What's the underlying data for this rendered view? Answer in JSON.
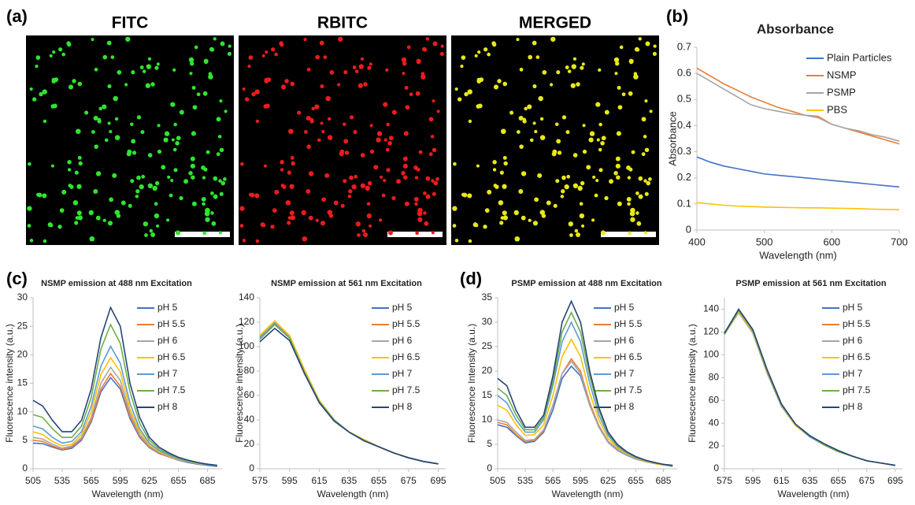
{
  "figure": {
    "panel_labels": [
      "(a)",
      "(b)",
      "(c)",
      "(d)"
    ],
    "image_titles": [
      "FITC",
      "RBITC",
      "MERGED"
    ]
  },
  "chart_data": [
    {
      "type": "line",
      "title": "Absorbance",
      "x_label": "Wavelength (nm)",
      "y_label": "Absorbance",
      "x": [
        400,
        420,
        440,
        460,
        480,
        500,
        520,
        540,
        560,
        580,
        600,
        620,
        640,
        660,
        680,
        700
      ],
      "xlim": [
        400,
        700
      ],
      "ylim": [
        0,
        0.7
      ],
      "xticks": [
        400,
        500,
        600,
        700
      ],
      "yticks": [
        0,
        0.1,
        0.2,
        0.3,
        0.4,
        0.5,
        0.6,
        0.7
      ],
      "series": [
        {
          "name": "Plain Particles",
          "color": "#4472c4",
          "values": [
            0.28,
            0.26,
            0.245,
            0.235,
            0.225,
            0.215,
            0.21,
            0.205,
            0.2,
            0.195,
            0.19,
            0.185,
            0.18,
            0.175,
            0.17,
            0.165
          ]
        },
        {
          "name": "NSMP",
          "color": "#ed7d31",
          "values": [
            0.62,
            0.59,
            0.56,
            0.535,
            0.51,
            0.49,
            0.47,
            0.455,
            0.44,
            0.435,
            0.405,
            0.39,
            0.375,
            0.36,
            0.345,
            0.33
          ]
        },
        {
          "name": "PSMP",
          "color": "#a5a5a5",
          "values": [
            0.6,
            0.57,
            0.54,
            0.51,
            0.48,
            0.465,
            0.455,
            0.445,
            0.44,
            0.43,
            0.405,
            0.39,
            0.38,
            0.365,
            0.355,
            0.34
          ]
        },
        {
          "name": "PBS",
          "color": "#ffc000",
          "values": [
            0.105,
            0.1,
            0.095,
            0.092,
            0.09,
            0.088,
            0.087,
            0.086,
            0.085,
            0.085,
            0.084,
            0.083,
            0.082,
            0.08,
            0.079,
            0.078
          ]
        }
      ]
    },
    {
      "type": "line",
      "title": "NSMP emission at 488 nm Excitation",
      "x_label": "Wavelength (nm)",
      "y_label": "Fluorescence intensity (a.u.)",
      "x": [
        505,
        515,
        525,
        535,
        545,
        555,
        565,
        575,
        585,
        595,
        605,
        615,
        625,
        635,
        645,
        655,
        665,
        675,
        685,
        695
      ],
      "xlim": [
        505,
        700
      ],
      "ylim": [
        0,
        30
      ],
      "xticks": [
        505,
        535,
        565,
        595,
        625,
        655,
        685
      ],
      "yticks": [
        0,
        5,
        10,
        15,
        20,
        25,
        30
      ],
      "series": [
        {
          "name": "pH 5",
          "color": "#4472c4",
          "values": [
            4.5,
            4.4,
            3.8,
            3.3,
            3.6,
            5,
            8.2,
            13.5,
            16,
            14,
            8.8,
            5.5,
            3.7,
            2.7,
            2.1,
            1.5,
            1.1,
            0.8,
            0.6,
            0.4
          ]
        },
        {
          "name": "pH 5.5",
          "color": "#ed7d31",
          "values": [
            5,
            4.8,
            4,
            3.4,
            3.8,
            5.2,
            8.5,
            14,
            16.7,
            14.5,
            9.2,
            5.7,
            3.8,
            2.8,
            2.1,
            1.6,
            1.2,
            0.9,
            0.7,
            0.5
          ]
        },
        {
          "name": "pH 6",
          "color": "#a5a5a5",
          "values": [
            5.5,
            5.2,
            4.3,
            3.6,
            4,
            5.5,
            9,
            15,
            17.8,
            15.5,
            9.8,
            6,
            4,
            2.9,
            2.2,
            1.6,
            1.2,
            0.9,
            0.7,
            0.5
          ]
        },
        {
          "name": "pH 6.5",
          "color": "#ffc000",
          "values": [
            6.5,
            6,
            4.8,
            4,
            4.3,
            6,
            10,
            16.5,
            19.5,
            17,
            10.5,
            6.5,
            4.2,
            3,
            2.3,
            1.7,
            1.3,
            0.9,
            0.7,
            0.5
          ]
        },
        {
          "name": "pH 7",
          "color": "#5b9bd5",
          "values": [
            7.5,
            7,
            5.5,
            4.5,
            4.8,
            6.5,
            11,
            18,
            21.5,
            18.5,
            11.5,
            7,
            4.5,
            3.2,
            2.4,
            1.8,
            1.3,
            1,
            0.7,
            0.5
          ]
        },
        {
          "name": "pH 7.5",
          "color": "#70ad47",
          "values": [
            9.5,
            9,
            7,
            5.5,
            5.5,
            7.5,
            12.5,
            21,
            25.3,
            22,
            13.5,
            8,
            5,
            3.5,
            2.6,
            1.9,
            1.4,
            1,
            0.8,
            0.6
          ]
        },
        {
          "name": "pH 8",
          "color": "#264478",
          "values": [
            12,
            11,
            8.5,
            6.5,
            6.5,
            8.5,
            14,
            23,
            28.3,
            25,
            15,
            9,
            5.5,
            3.8,
            2.8,
            2,
            1.5,
            1.1,
            0.8,
            0.6
          ]
        }
      ]
    },
    {
      "type": "line",
      "title": "NSMP emission at 561 nm Excitation",
      "x_label": "Wavelength (nm)",
      "y_label": "Fluorescence intensity (a.u.)",
      "x": [
        575,
        585,
        595,
        605,
        615,
        625,
        635,
        645,
        655,
        665,
        675,
        685,
        695
      ],
      "xlim": [
        575,
        700
      ],
      "ylim": [
        0,
        140
      ],
      "xticks": [
        575,
        595,
        615,
        635,
        655,
        675,
        695
      ],
      "yticks": [
        0,
        20,
        40,
        60,
        80,
        100,
        120,
        140
      ],
      "series": [
        {
          "name": "pH 5",
          "color": "#4472c4",
          "values": [
            109,
            121,
            109,
            81,
            55,
            40,
            30,
            24,
            18,
            13,
            9,
            6,
            4
          ]
        },
        {
          "name": "pH 5.5",
          "color": "#ed7d31",
          "values": [
            108,
            120,
            108,
            80,
            55,
            40,
            30,
            24,
            18,
            13,
            9,
            6,
            4
          ]
        },
        {
          "name": "pH 6",
          "color": "#a5a5a5",
          "values": [
            108,
            120,
            109,
            80,
            55,
            40,
            30,
            24,
            18,
            13,
            9,
            6,
            4
          ]
        },
        {
          "name": "pH 6.5",
          "color": "#ffc000",
          "values": [
            109,
            121,
            109,
            81,
            56,
            40,
            30,
            24,
            18,
            13,
            9,
            6,
            4
          ]
        },
        {
          "name": "pH 7",
          "color": "#5b9bd5",
          "values": [
            107,
            119,
            107,
            79,
            55,
            40,
            30,
            23,
            18,
            13,
            9,
            6,
            4
          ]
        },
        {
          "name": "pH 7.5",
          "color": "#70ad47",
          "values": [
            106,
            118,
            107,
            79,
            55,
            40,
            30,
            23,
            18,
            13,
            9,
            6,
            4
          ]
        },
        {
          "name": "pH 8",
          "color": "#264478",
          "values": [
            104,
            115,
            105,
            78,
            54,
            39,
            30,
            23,
            18,
            13,
            9,
            6,
            4
          ]
        }
      ]
    },
    {
      "type": "line",
      "title": "PSMP emission at 488 nm Excitation",
      "x_label": "Wavelength (nm)",
      "y_label": "Fluorescence Intensity (a.u.)",
      "x": [
        505,
        515,
        525,
        535,
        545,
        555,
        565,
        575,
        585,
        595,
        605,
        615,
        625,
        635,
        645,
        655,
        665,
        675,
        685,
        695
      ],
      "xlim": [
        505,
        700
      ],
      "ylim": [
        0,
        35
      ],
      "xticks": [
        505,
        535,
        565,
        595,
        625,
        655,
        685
      ],
      "yticks": [
        0,
        5,
        10,
        15,
        20,
        25,
        30,
        35
      ],
      "series": [
        {
          "name": "pH 5",
          "color": "#4472c4",
          "values": [
            9,
            8.5,
            6.8,
            5.3,
            5.6,
            7.5,
            12,
            18.5,
            21,
            19,
            13,
            8.5,
            5.4,
            3.8,
            2.8,
            2,
            1.5,
            1.1,
            0.8,
            0.5
          ]
        },
        {
          "name": "pH 5.5",
          "color": "#ed7d31",
          "values": [
            9.5,
            9,
            7,
            5.5,
            5.8,
            7.8,
            13,
            19.5,
            22.5,
            20,
            13.5,
            8.8,
            5.6,
            4,
            2.9,
            2.1,
            1.5,
            1.1,
            0.8,
            0.6
          ]
        },
        {
          "name": "pH 6",
          "color": "#a5a5a5",
          "values": [
            10,
            9.5,
            7.5,
            5.8,
            6,
            8,
            13,
            19.5,
            22,
            19.5,
            13,
            8.5,
            5.5,
            3.9,
            2.9,
            2.1,
            1.5,
            1.1,
            0.8,
            0.6
          ]
        },
        {
          "name": "pH 6.5",
          "color": "#ffc000",
          "values": [
            13,
            12,
            9,
            6.8,
            7,
            9,
            15,
            23,
            26.5,
            23,
            15.5,
            10,
            6.2,
            4.3,
            3.1,
            2.2,
            1.6,
            1.1,
            0.8,
            0.6
          ]
        },
        {
          "name": "pH 7",
          "color": "#5b9bd5",
          "values": [
            15,
            13.5,
            10,
            7.5,
            7.5,
            10,
            17,
            26,
            30,
            26,
            17.5,
            11,
            6.8,
            4.6,
            3.3,
            2.3,
            1.7,
            1.2,
            0.9,
            0.6
          ]
        },
        {
          "name": "pH 7.5",
          "color": "#70ad47",
          "values": [
            16.5,
            15,
            11,
            8,
            8,
            10.5,
            18,
            28,
            32,
            28,
            19,
            12,
            7.2,
            4.8,
            3.4,
            2.4,
            1.7,
            1.2,
            0.9,
            0.7
          ]
        },
        {
          "name": "pH 8",
          "color": "#264478",
          "values": [
            18.5,
            17,
            12,
            8.5,
            8.5,
            11,
            19,
            30,
            34.3,
            30,
            20,
            12.5,
            7.5,
            5,
            3.5,
            2.5,
            1.8,
            1.3,
            0.9,
            0.7
          ]
        }
      ]
    },
    {
      "type": "line",
      "title": "PSMP emission at 561 nm Excitation",
      "x_label": "Wavelength (nm)",
      "y_label": "Fluorescence intensity (a.u.)",
      "x": [
        575,
        585,
        595,
        605,
        615,
        625,
        635,
        645,
        655,
        665,
        675,
        685,
        695
      ],
      "xlim": [
        575,
        700
      ],
      "ylim": [
        0,
        150
      ],
      "xticks": [
        575,
        595,
        615,
        635,
        655,
        675,
        695
      ],
      "yticks": [
        0,
        20,
        40,
        60,
        80,
        100,
        120,
        140
      ],
      "series": [
        {
          "name": "pH 5",
          "color": "#4472c4",
          "values": [
            119,
            137,
            119,
            84,
            55,
            38,
            28,
            21,
            15,
            11,
            7,
            5,
            3
          ]
        },
        {
          "name": "pH 5.5",
          "color": "#ed7d31",
          "values": [
            119,
            138,
            120,
            85,
            55,
            38,
            28,
            21,
            15,
            11,
            7,
            5,
            3
          ]
        },
        {
          "name": "pH 6",
          "color": "#a5a5a5",
          "values": [
            118,
            137,
            119,
            85,
            55,
            38,
            28,
            21,
            15,
            11,
            7,
            5,
            3
          ]
        },
        {
          "name": "pH 6.5",
          "color": "#ffc000",
          "values": [
            118,
            138,
            120,
            85,
            56,
            38,
            28,
            21,
            15,
            11,
            7,
            5,
            3
          ]
        },
        {
          "name": "pH 7",
          "color": "#5b9bd5",
          "values": [
            118,
            139,
            121,
            86,
            56,
            39,
            28,
            21,
            15,
            11,
            7,
            5,
            3
          ]
        },
        {
          "name": "pH 7.5",
          "color": "#70ad47",
          "values": [
            118,
            139,
            121,
            86,
            56,
            39,
            29,
            21,
            15,
            11,
            7,
            5,
            3
          ]
        },
        {
          "name": "pH 8",
          "color": "#264478",
          "values": [
            119,
            140,
            122,
            87,
            57,
            39,
            29,
            22,
            16,
            11,
            7,
            5,
            3
          ]
        }
      ]
    }
  ]
}
